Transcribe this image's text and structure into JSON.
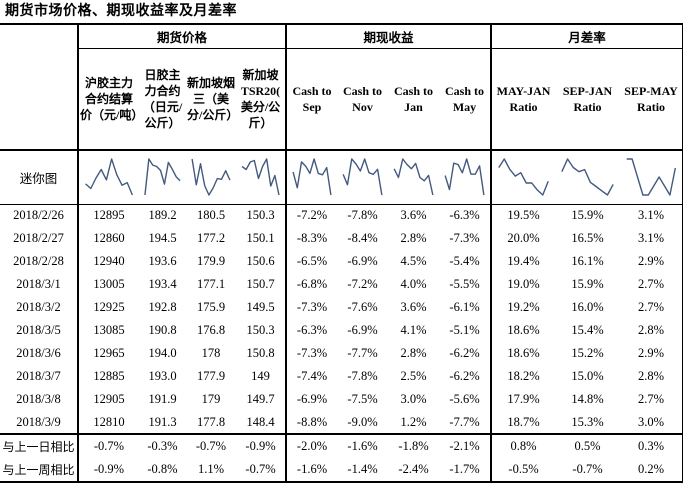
{
  "title": "期货市场价格、期现收益率及月差率",
  "accent_colors": {
    "sparkline": "#44597e",
    "border": "#000000"
  },
  "table": {
    "groups": [
      {
        "label": "期货价格",
        "span": 4
      },
      {
        "label": "期现收益",
        "span": 4
      },
      {
        "label": "月差率",
        "span": 3
      }
    ],
    "columns": [
      "沪胶主力合约结算价（元/吨）",
      "日胶主力合约（日元/公斤）",
      "新加坡烟三（美分/公斤）",
      "新加坡TSR20(美分/公斤）",
      "Cash to Sep",
      "Cash to Nov",
      "Cash to Jan",
      "Cash to May",
      "MAY-JAN Ratio",
      "SEP-JAN Ratio",
      "SEP-MAY Ratio"
    ],
    "sparkline_row_label": "迷你图",
    "rows": [
      {
        "date": "2018/2/26",
        "values": [
          "12895",
          "189.2",
          "180.5",
          "150.3",
          "-7.2%",
          "-7.8%",
          "3.6%",
          "-6.3%",
          "19.5%",
          "15.9%",
          "3.1%"
        ]
      },
      {
        "date": "2018/2/27",
        "values": [
          "12860",
          "194.5",
          "177.2",
          "150.1",
          "-8.3%",
          "-8.4%",
          "2.8%",
          "-7.3%",
          "20.0%",
          "16.5%",
          "3.1%"
        ]
      },
      {
        "date": "2018/2/28",
        "values": [
          "12940",
          "193.6",
          "179.9",
          "150.6",
          "-6.5%",
          "-6.9%",
          "4.5%",
          "-5.4%",
          "19.4%",
          "16.1%",
          "2.9%"
        ]
      },
      {
        "date": "2018/3/1",
        "values": [
          "13005",
          "193.4",
          "177.1",
          "150.7",
          "-6.8%",
          "-7.2%",
          "4.0%",
          "-5.5%",
          "19.0%",
          "15.9%",
          "2.7%"
        ]
      },
      {
        "date": "2018/3/2",
        "values": [
          "12925",
          "192.8",
          "175.9",
          "149.5",
          "-7.3%",
          "-7.6%",
          "3.6%",
          "-6.1%",
          "19.2%",
          "16.0%",
          "2.7%"
        ]
      },
      {
        "date": "2018/3/5",
        "values": [
          "13085",
          "190.8",
          "176.8",
          "150.3",
          "-6.3%",
          "-6.9%",
          "4.1%",
          "-5.1%",
          "18.6%",
          "15.4%",
          "2.8%"
        ]
      },
      {
        "date": "2018/3/6",
        "values": [
          "12965",
          "194.0",
          "178",
          "150.8",
          "-7.3%",
          "-7.7%",
          "2.8%",
          "-6.2%",
          "18.6%",
          "15.2%",
          "2.9%"
        ]
      },
      {
        "date": "2018/3/7",
        "values": [
          "12885",
          "193.0",
          "177.9",
          "149",
          "-7.4%",
          "-7.8%",
          "2.5%",
          "-6.2%",
          "18.2%",
          "15.0%",
          "2.8%"
        ]
      },
      {
        "date": "2018/3/8",
        "values": [
          "12905",
          "191.9",
          "179",
          "149.7",
          "-6.9%",
          "-7.5%",
          "3.0%",
          "-5.6%",
          "17.9%",
          "14.8%",
          "2.7%"
        ]
      },
      {
        "date": "2018/3/9",
        "values": [
          "12810",
          "191.3",
          "177.8",
          "148.4",
          "-8.8%",
          "-9.0%",
          "1.2%",
          "-7.7%",
          "18.7%",
          "15.3%",
          "3.0%"
        ]
      }
    ],
    "summary_rows": [
      {
        "label": "与上一日相比",
        "values": [
          "-0.7%",
          "-0.3%",
          "-0.7%",
          "-0.9%",
          "-2.0%",
          "-1.6%",
          "-1.8%",
          "-2.1%",
          "0.8%",
          "0.5%",
          "0.3%"
        ]
      },
      {
        "label": "与上一周相比",
        "values": [
          "-0.9%",
          "-0.8%",
          "1.1%",
          "-0.7%",
          "-1.6%",
          "-1.4%",
          "-2.4%",
          "-1.7%",
          "-0.5%",
          "-0.7%",
          "0.2%"
        ]
      }
    ]
  }
}
